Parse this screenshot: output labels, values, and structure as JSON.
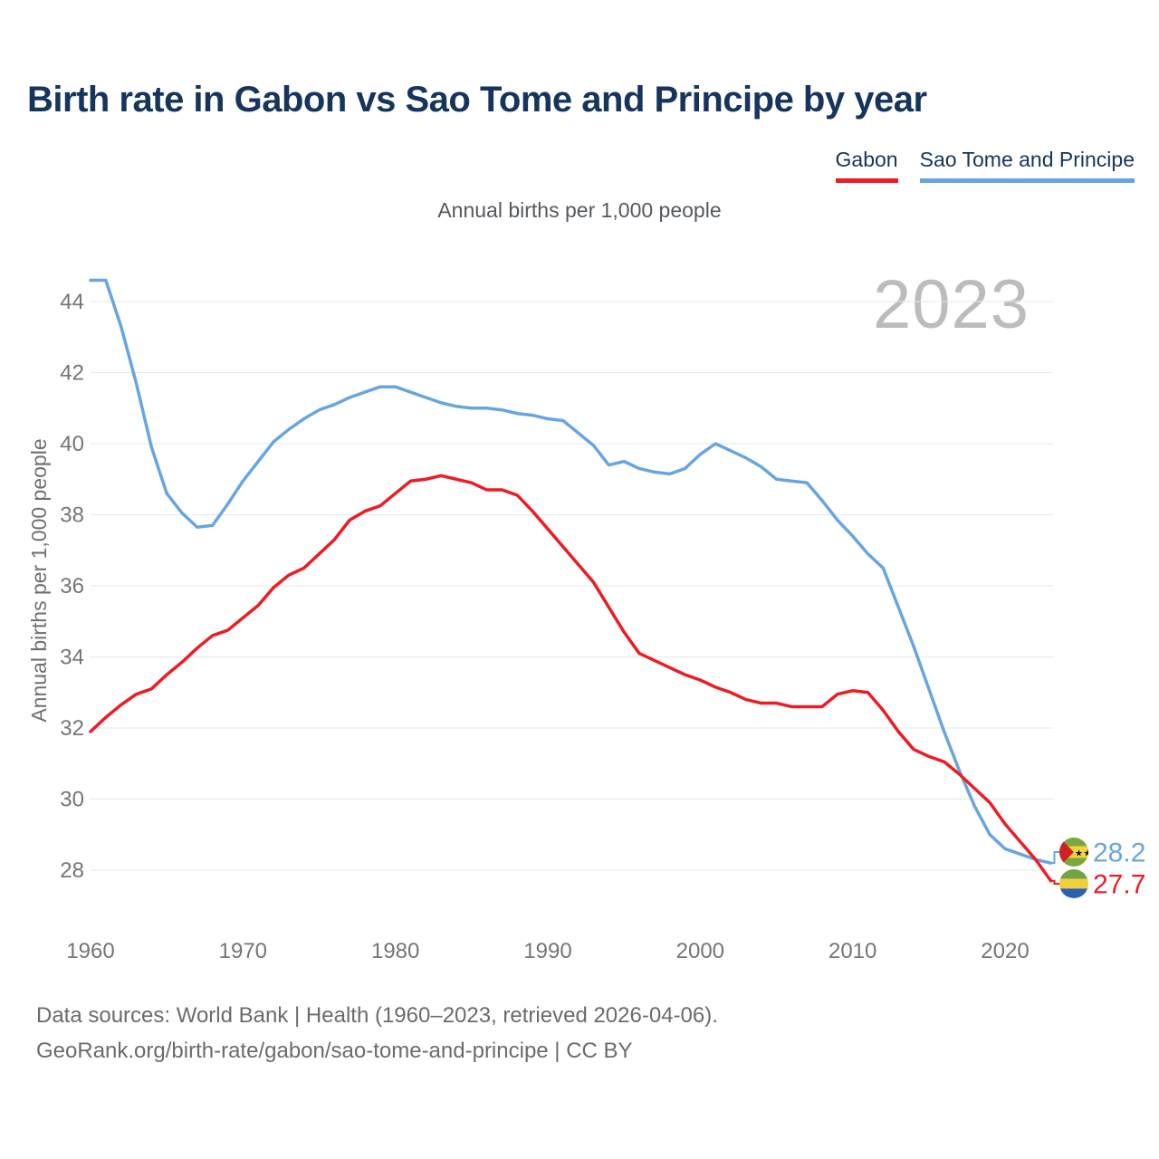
{
  "title": "Birth rate in Gabon vs Sao Tome and Principe by year",
  "subtitle": "Annual births per 1,000 people",
  "y_axis_label": "Annual births per 1,000 people",
  "watermark": "2023",
  "legend": [
    {
      "label": "Gabon",
      "color": "#ec1c24"
    },
    {
      "label": "Sao Tome and Principe",
      "color": "#68a5e0"
    }
  ],
  "footer": {
    "line1": "Data sources: World Bank | Health (1960–2023, retrieved 2026-04-06).",
    "line2": "GeoRank.org/birth-rate/gabon/sao-tome-and-principe | CC BY"
  },
  "end_labels": [
    {
      "id": "sao-tome-and-principe",
      "text": "28.2",
      "value": 28.2,
      "color": "#68a5e0",
      "flag": "sao_tome"
    },
    {
      "id": "gabon",
      "text": "27.7",
      "value": 27.7,
      "color": "#ec1c24",
      "flag": "gabon"
    }
  ],
  "flags": {
    "sao_tome": {
      "green": "#7aa83d",
      "yellow": "#f2d53e",
      "red": "#d02027",
      "stars": "#111111"
    },
    "gabon": {
      "green": "#6fa544",
      "yellow": "#f2d03d",
      "blue": "#2b61ae"
    }
  },
  "chart_data": {
    "type": "line",
    "title": "Birth rate in Gabon vs Sao Tome and Principe by year",
    "xlabel": "",
    "ylabel": "Annual births per 1,000 people",
    "grid": true,
    "legend_position": "top-right",
    "x_ticks": [
      1960,
      1970,
      1980,
      1990,
      2000,
      2010,
      2020
    ],
    "y_ticks": [
      44,
      42,
      40,
      38,
      36,
      34,
      32,
      30,
      28
    ],
    "xlim": [
      1960,
      2023
    ],
    "ylim": [
      27.3,
      45.3
    ],
    "years": [
      1960,
      1961,
      1962,
      1963,
      1964,
      1965,
      1966,
      1967,
      1968,
      1969,
      1970,
      1971,
      1972,
      1973,
      1974,
      1975,
      1976,
      1977,
      1978,
      1979,
      1980,
      1981,
      1982,
      1983,
      1984,
      1985,
      1986,
      1987,
      1988,
      1989,
      1990,
      1991,
      1992,
      1993,
      1994,
      1995,
      1996,
      1997,
      1998,
      1999,
      2000,
      2001,
      2002,
      2003,
      2004,
      2005,
      2006,
      2007,
      2008,
      2009,
      2010,
      2011,
      2012,
      2013,
      2014,
      2015,
      2016,
      2017,
      2018,
      2019,
      2020,
      2021,
      2022,
      2023
    ],
    "series": [
      {
        "id": "gabon",
        "name": "Gabon",
        "color": "#ec1c24",
        "values": [
          31.9,
          32.3,
          32.65,
          32.95,
          33.1,
          33.5,
          33.85,
          34.25,
          34.6,
          34.75,
          35.1,
          35.45,
          35.95,
          36.3,
          36.5,
          36.9,
          37.3,
          37.85,
          38.1,
          38.25,
          38.6,
          38.95,
          39.0,
          39.1,
          39.0,
          38.9,
          38.7,
          38.7,
          38.55,
          38.1,
          37.6,
          37.1,
          36.6,
          36.1,
          35.4,
          34.7,
          34.1,
          33.9,
          33.7,
          33.5,
          33.35,
          33.15,
          33.0,
          32.8,
          32.7,
          32.7,
          32.6,
          32.6,
          32.6,
          32.95,
          33.05,
          33.0,
          32.5,
          31.9,
          31.4,
          31.2,
          31.05,
          30.7,
          30.3,
          29.9,
          29.3,
          28.8,
          28.3,
          27.7
        ]
      },
      {
        "id": "sao-tome-and-principe",
        "name": "Sao Tome and Principe",
        "color": "#68a5e0",
        "values": [
          44.6,
          44.6,
          43.3,
          41.7,
          39.9,
          38.6,
          38.05,
          37.65,
          37.7,
          38.3,
          38.95,
          39.5,
          40.05,
          40.4,
          40.7,
          40.95,
          41.1,
          41.3,
          41.45,
          41.6,
          41.6,
          41.45,
          41.3,
          41.15,
          41.05,
          41.0,
          41.0,
          40.95,
          40.85,
          40.8,
          40.7,
          40.65,
          40.3,
          39.95,
          39.4,
          39.5,
          39.3,
          39.2,
          39.15,
          39.3,
          39.7,
          40.0,
          39.8,
          39.6,
          39.35,
          39.0,
          38.95,
          38.9,
          38.4,
          37.85,
          37.4,
          36.9,
          36.5,
          35.4,
          34.3,
          33.1,
          31.9,
          30.8,
          29.8,
          29.0,
          28.6,
          28.45,
          28.3,
          28.2
        ]
      }
    ]
  }
}
